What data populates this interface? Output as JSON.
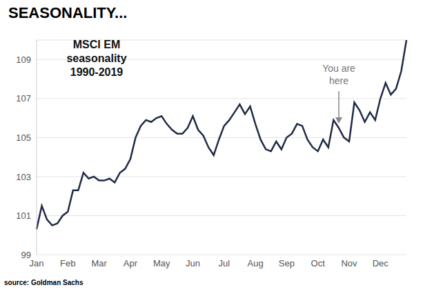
{
  "chart_data": {
    "type": "line",
    "title": "SEASONALITY...",
    "subtitle": "MSCI EM seasonality 1990-2019",
    "source": "source: Goldman Sachs",
    "annotations": [
      {
        "text": "You are here"
      }
    ],
    "categories": [
      "Jan",
      null,
      null,
      null,
      null,
      null,
      "Feb",
      null,
      null,
      null,
      null,
      null,
      "Mar",
      null,
      null,
      null,
      null,
      null,
      "Apr",
      null,
      null,
      null,
      null,
      null,
      "May",
      null,
      null,
      null,
      null,
      null,
      "Jun",
      null,
      null,
      null,
      null,
      null,
      "Jul",
      null,
      null,
      null,
      null,
      null,
      "Aug",
      null,
      null,
      null,
      null,
      null,
      "Sep",
      null,
      null,
      null,
      null,
      null,
      "Oct",
      null,
      null,
      null,
      null,
      null,
      "Nov",
      null,
      null,
      null,
      null,
      null,
      "Dec",
      null,
      null,
      null,
      null,
      null
    ],
    "values": [
      100.3,
      101.5,
      100.8,
      100.5,
      100.6,
      101.0,
      101.2,
      102.3,
      102.3,
      103.2,
      102.9,
      103.0,
      102.8,
      102.8,
      102.9,
      102.7,
      103.2,
      103.4,
      103.9,
      105.0,
      105.6,
      105.9,
      105.8,
      106.0,
      106.1,
      105.7,
      105.4,
      105.2,
      105.2,
      105.5,
      106.1,
      105.4,
      105.1,
      104.5,
      104.1,
      104.9,
      105.6,
      105.9,
      106.3,
      106.7,
      106.2,
      106.6,
      105.7,
      104.9,
      104.4,
      104.3,
      104.8,
      104.4,
      105.0,
      105.2,
      105.7,
      105.6,
      104.9,
      104.5,
      104.3,
      104.9,
      104.5,
      105.9,
      105.5,
      105.0,
      104.8,
      106.8,
      106.4,
      105.8,
      106.3,
      105.9,
      107.0,
      107.8,
      107.2,
      107.5,
      108.4,
      110.0
    ],
    "color": "#1f2a44",
    "ylim": [
      99,
      110
    ],
    "yticks": [
      99,
      101,
      103,
      105,
      107,
      109
    ],
    "grid": true
  }
}
